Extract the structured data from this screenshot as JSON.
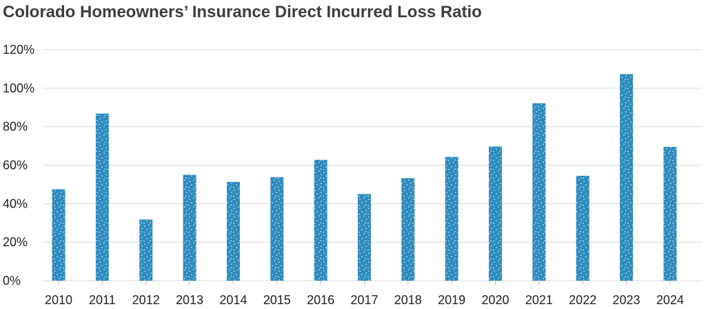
{
  "chart_data": {
    "type": "bar",
    "title": "Colorado Homeowners’ Insurance Direct Incurred Loss Ratio",
    "categories": [
      "2010",
      "2011",
      "2012",
      "2013",
      "2014",
      "2015",
      "2016",
      "2017",
      "2018",
      "2019",
      "2020",
      "2021",
      "2022",
      "2023",
      "2024"
    ],
    "values": [
      47.5,
      86.8,
      31.8,
      55,
      51.3,
      53.8,
      62.8,
      45,
      53.3,
      64.3,
      69.7,
      92.2,
      54.5,
      107.3,
      69.5
    ],
    "ylim": [
      0,
      120
    ],
    "yticks": [
      0,
      20,
      40,
      60,
      80,
      100,
      120
    ],
    "ytick_labels": [
      "0%",
      "20%",
      "40%",
      "60%",
      "80%",
      "100%",
      "120%"
    ],
    "xlabel": "",
    "ylabel": "",
    "grid": true,
    "legend": "none",
    "bar_color": "#2e8bbd",
    "dot_color": "#ffffff"
  }
}
